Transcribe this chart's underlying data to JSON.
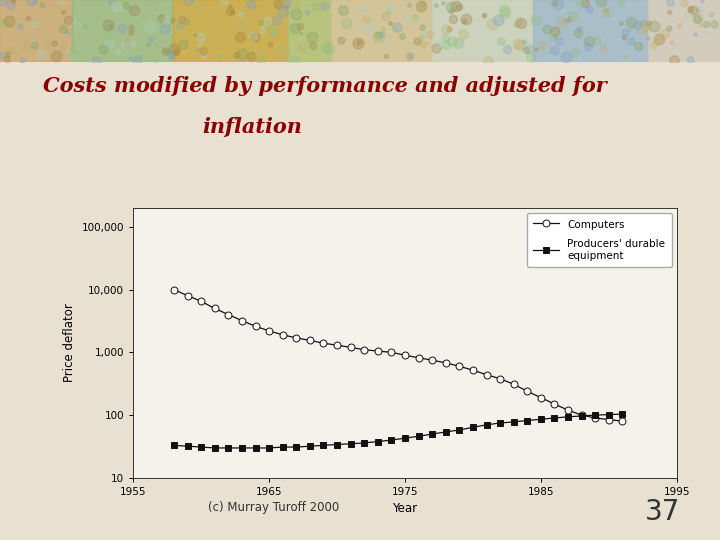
{
  "title_line1": "Costs modified by performance and adjusted for",
  "title_line2": "inflation",
  "title_color": "#8B0000",
  "title_fontsize": 15,
  "footer_text": "(c) Murray Turoff 2000",
  "footer_number": "37",
  "xlabel": "Year",
  "ylabel": "Price deflator",
  "xlim": [
    1955,
    1995
  ],
  "ylim_log": [
    10,
    200000
  ],
  "yticks": [
    10,
    100,
    1000,
    10000,
    100000
  ],
  "ytick_labels": [
    "10",
    "100",
    "1,000",
    "10,000",
    "100,000"
  ],
  "xticks": [
    1955,
    1965,
    1975,
    1985,
    1995
  ],
  "computers_x": [
    1958,
    1959,
    1960,
    1961,
    1962,
    1963,
    1964,
    1965,
    1966,
    1967,
    1968,
    1969,
    1970,
    1971,
    1972,
    1973,
    1974,
    1975,
    1976,
    1977,
    1978,
    1979,
    1980,
    1981,
    1982,
    1983,
    1984,
    1985,
    1986,
    1987,
    1988,
    1989,
    1990,
    1991
  ],
  "computers_y": [
    10000,
    8000,
    6500,
    5000,
    4000,
    3200,
    2600,
    2200,
    1900,
    1700,
    1550,
    1400,
    1300,
    1200,
    1100,
    1050,
    1000,
    900,
    820,
    750,
    680,
    600,
    520,
    440,
    380,
    310,
    240,
    190,
    150,
    120,
    100,
    90,
    85,
    80
  ],
  "producers_x": [
    1958,
    1959,
    1960,
    1961,
    1962,
    1963,
    1964,
    1965,
    1966,
    1967,
    1968,
    1969,
    1970,
    1971,
    1972,
    1973,
    1974,
    1975,
    1976,
    1977,
    1978,
    1979,
    1980,
    1981,
    1982,
    1983,
    1984,
    1985,
    1986,
    1987,
    1988,
    1989,
    1990,
    1991
  ],
  "producers_y": [
    33,
    32,
    31,
    30,
    30,
    30,
    30,
    30,
    31,
    31,
    32,
    33,
    34,
    35,
    36,
    38,
    40,
    43,
    46,
    50,
    54,
    58,
    64,
    70,
    75,
    78,
    82,
    86,
    90,
    94,
    97,
    100,
    102,
    104
  ],
  "bg_color": "#e8e0d0",
  "line_color": "#111111",
  "marker_size_computers": 5,
  "marker_size_producers": 4,
  "legend_computers": "Computers",
  "legend_producers": "Producers' durable\nequipment",
  "header_strip_colors": [
    "#c8a870",
    "#9ab880",
    "#c8a840",
    "#b0c070",
    "#d0c090",
    "#c8d0b8",
    "#a0b8c8",
    "#d0c8b8"
  ],
  "header_strip_widths": [
    0.1,
    0.14,
    0.16,
    0.06,
    0.14,
    0.14,
    0.16,
    0.1
  ]
}
